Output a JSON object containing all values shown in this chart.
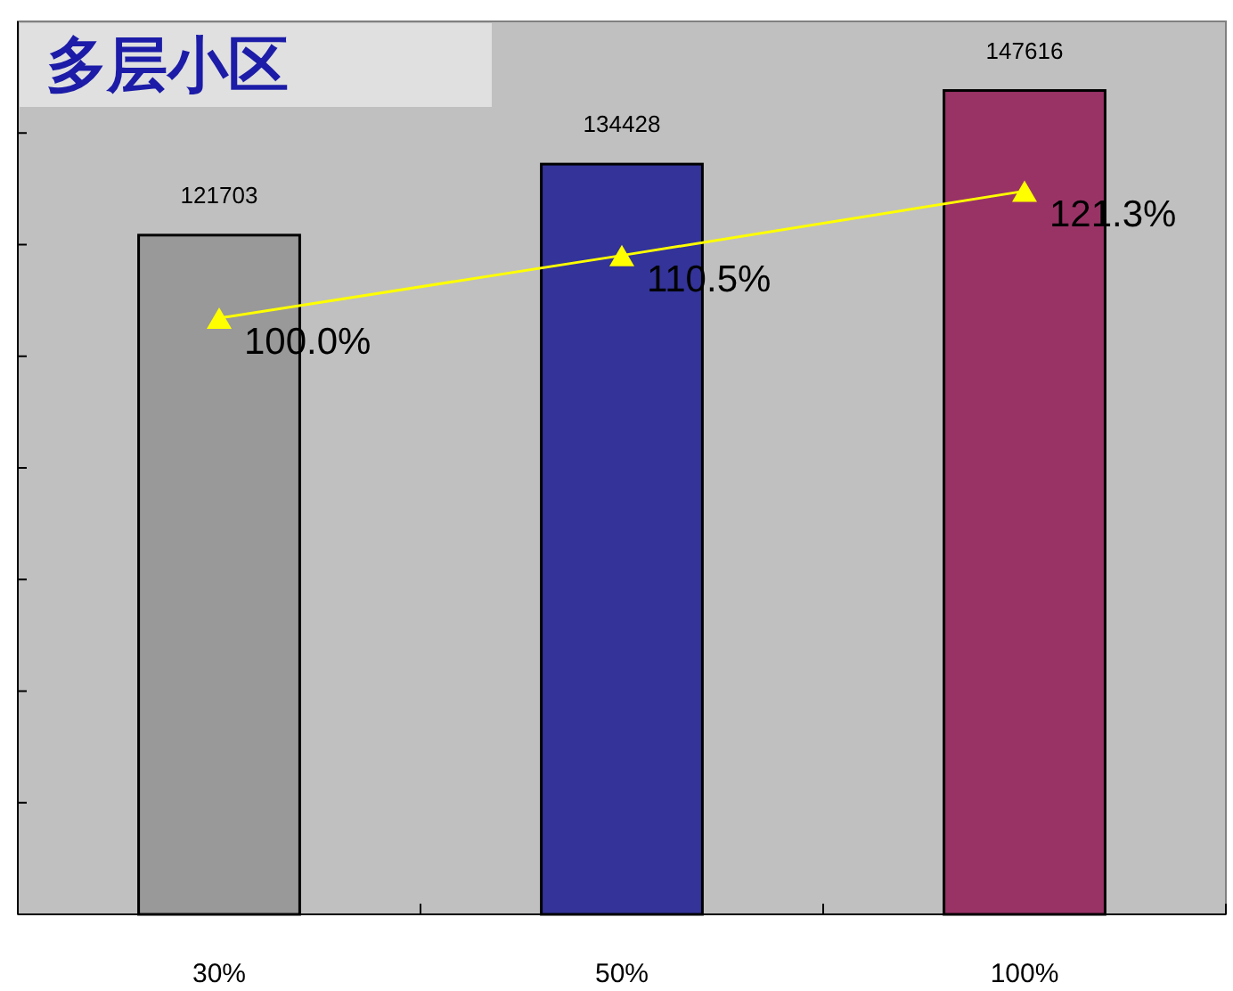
{
  "chart_data": {
    "type": "bar",
    "title": "多层小区",
    "categories": [
      "30%",
      "50%",
      "100%"
    ],
    "series": [
      {
        "colors": [
          "#999999",
          "#333399",
          "#993366"
        ],
        "values": [
          121703,
          134428,
          147616
        ],
        "value_labels": [
          "121703",
          "134428",
          "147616"
        ]
      },
      {
        "type": "line",
        "axis": "y2",
        "color": "#ffff00",
        "marker": "triangle",
        "values": [
          100.0,
          110.5,
          121.3
        ],
        "value_labels": [
          "100.0%",
          "110.5%",
          "121.3%"
        ]
      }
    ],
    "ylim": [
      0,
      160000
    ],
    "yticks": [
      {
        "value": 20000,
        "label": null
      },
      {
        "value": 40000,
        "label": null
      },
      {
        "value": 60000,
        "label": null
      },
      {
        "value": 80000,
        "label": null
      },
      {
        "value": 100000,
        "label": null
      },
      {
        "value": 120000,
        "label": null
      },
      {
        "value": 140000,
        "label": null
      }
    ],
    "tick_labels": "x",
    "grid": false
  }
}
